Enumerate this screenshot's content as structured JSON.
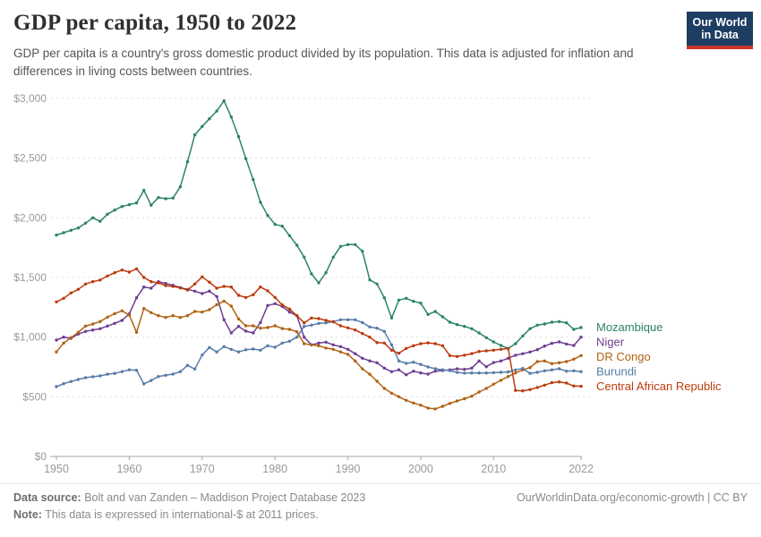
{
  "header": {
    "logo_line1": "Our World",
    "logo_line2": "in Data"
  },
  "chart_data": {
    "type": "line",
    "title": "GDP per capita, 1950 to 2022",
    "subtitle": "GDP per capita is a country's gross domestic product divided by its population. This data is adjusted for inflation and differences in living costs between countries.",
    "xlabel": "",
    "ylabel": "",
    "ylim": [
      0,
      3000
    ],
    "grid": true,
    "legend_position": "right",
    "yticks": [
      0,
      500,
      1000,
      1500,
      2000,
      2500,
      3000
    ],
    "ytick_labels": [
      "$0",
      "$500",
      "$1,000",
      "$1,500",
      "$2,000",
      "$2,500",
      "$3,000"
    ],
    "xticks": [
      1950,
      1960,
      1970,
      1980,
      1990,
      2000,
      2010,
      2022
    ],
    "xtick_labels": [
      "1950",
      "1960",
      "1970",
      "1980",
      "1990",
      "2000",
      "2010",
      "2022"
    ],
    "years": [
      1950,
      1951,
      1952,
      1953,
      1954,
      1955,
      1956,
      1957,
      1958,
      1959,
      1960,
      1961,
      1962,
      1963,
      1964,
      1965,
      1966,
      1967,
      1968,
      1969,
      1970,
      1971,
      1972,
      1973,
      1974,
      1975,
      1976,
      1977,
      1978,
      1979,
      1980,
      1981,
      1982,
      1983,
      1984,
      1985,
      1986,
      1987,
      1988,
      1989,
      1990,
      1991,
      1992,
      1993,
      1994,
      1995,
      1996,
      1997,
      1998,
      1999,
      2000,
      2001,
      2002,
      2003,
      2004,
      2005,
      2006,
      2007,
      2008,
      2009,
      2010,
      2011,
      2012,
      2013,
      2014,
      2015,
      2016,
      2017,
      2018,
      2019,
      2020,
      2021,
      2022
    ],
    "series": [
      {
        "name": "Mozambique",
        "color": "#2C8465",
        "values": [
          1855,
          1875,
          1895,
          1915,
          1955,
          2000,
          1970,
          2030,
          2065,
          2095,
          2110,
          2125,
          2230,
          2105,
          2170,
          2160,
          2165,
          2260,
          2470,
          2695,
          2765,
          2830,
          2895,
          2980,
          2845,
          2680,
          2495,
          2320,
          2130,
          2020,
          1945,
          1930,
          1850,
          1770,
          1670,
          1530,
          1455,
          1540,
          1670,
          1760,
          1775,
          1775,
          1720,
          1480,
          1445,
          1330,
          1160,
          1310,
          1325,
          1300,
          1285,
          1190,
          1215,
          1170,
          1125,
          1105,
          1090,
          1070,
          1035,
          995,
          960,
          930,
          905,
          945,
          1010,
          1070,
          1100,
          1110,
          1125,
          1130,
          1120,
          1065,
          1080
        ]
      },
      {
        "name": "Niger",
        "color": "#6D3E91",
        "values": [
          975,
          1000,
          990,
          1025,
          1048,
          1060,
          1070,
          1093,
          1115,
          1140,
          1195,
          1330,
          1420,
          1410,
          1465,
          1450,
          1435,
          1415,
          1400,
          1385,
          1365,
          1385,
          1340,
          1145,
          1035,
          1090,
          1050,
          1035,
          1122,
          1265,
          1280,
          1257,
          1210,
          1180,
          1000,
          935,
          950,
          958,
          935,
          920,
          898,
          861,
          823,
          801,
          785,
          740,
          710,
          726,
          685,
          715,
          700,
          690,
          715,
          720,
          726,
          734,
          730,
          740,
          800,
          752,
          787,
          800,
          823,
          848,
          861,
          875,
          895,
          925,
          948,
          960,
          942,
          930,
          1000
        ]
      },
      {
        "name": "DR Congo",
        "color": "#B16214",
        "values": [
          876,
          950,
          995,
          1040,
          1093,
          1110,
          1130,
          1167,
          1197,
          1220,
          1185,
          1040,
          1240,
          1205,
          1180,
          1165,
          1180,
          1165,
          1180,
          1215,
          1210,
          1230,
          1272,
          1302,
          1260,
          1152,
          1095,
          1095,
          1075,
          1080,
          1095,
          1072,
          1065,
          1045,
          945,
          935,
          928,
          908,
          898,
          876,
          855,
          800,
          734,
          689,
          630,
          570,
          530,
          500,
          470,
          448,
          430,
          405,
          398,
          420,
          445,
          465,
          484,
          505,
          540,
          570,
          605,
          638,
          670,
          700,
          725,
          745,
          795,
          800,
          778,
          785,
          795,
          815,
          845
        ]
      },
      {
        "name": "Burundi",
        "color": "#577CA8",
        "values": [
          585,
          610,
          628,
          645,
          660,
          668,
          675,
          689,
          696,
          711,
          726,
          722,
          608,
          637,
          670,
          680,
          690,
          711,
          763,
          733,
          850,
          913,
          876,
          920,
          898,
          876,
          894,
          900,
          890,
          928,
          915,
          950,
          965,
          1000,
          1090,
          1100,
          1115,
          1120,
          1130,
          1145,
          1145,
          1145,
          1122,
          1085,
          1075,
          1048,
          935,
          800,
          780,
          790,
          771,
          750,
          735,
          726,
          719,
          704,
          698,
          700,
          700,
          700,
          702,
          705,
          708,
          725,
          737,
          696,
          705,
          718,
          725,
          735,
          715,
          718,
          710
        ]
      },
      {
        "name": "Central African Republic",
        "color": "#BC3A0C",
        "values": [
          1295,
          1325,
          1370,
          1400,
          1445,
          1465,
          1478,
          1512,
          1540,
          1562,
          1545,
          1572,
          1500,
          1465,
          1455,
          1432,
          1425,
          1412,
          1395,
          1445,
          1505,
          1460,
          1410,
          1425,
          1420,
          1350,
          1332,
          1355,
          1420,
          1388,
          1332,
          1270,
          1235,
          1180,
          1120,
          1160,
          1155,
          1140,
          1128,
          1095,
          1078,
          1060,
          1030,
          1000,
          955,
          950,
          890,
          865,
          905,
          928,
          945,
          952,
          945,
          928,
          845,
          838,
          848,
          862,
          880,
          885,
          890,
          898,
          905,
          553,
          550,
          560,
          578,
          598,
          618,
          625,
          615,
          590,
          588
        ]
      }
    ]
  },
  "footer": {
    "datasource_label": "Data source:",
    "datasource_text": " Bolt and van Zanden – Maddison Project Database 2023",
    "note_label": "Note:",
    "note_text": " This data is expressed in international-$ at 2011 prices.",
    "rights": "OurWorldinData.org/economic-growth | CC BY"
  }
}
